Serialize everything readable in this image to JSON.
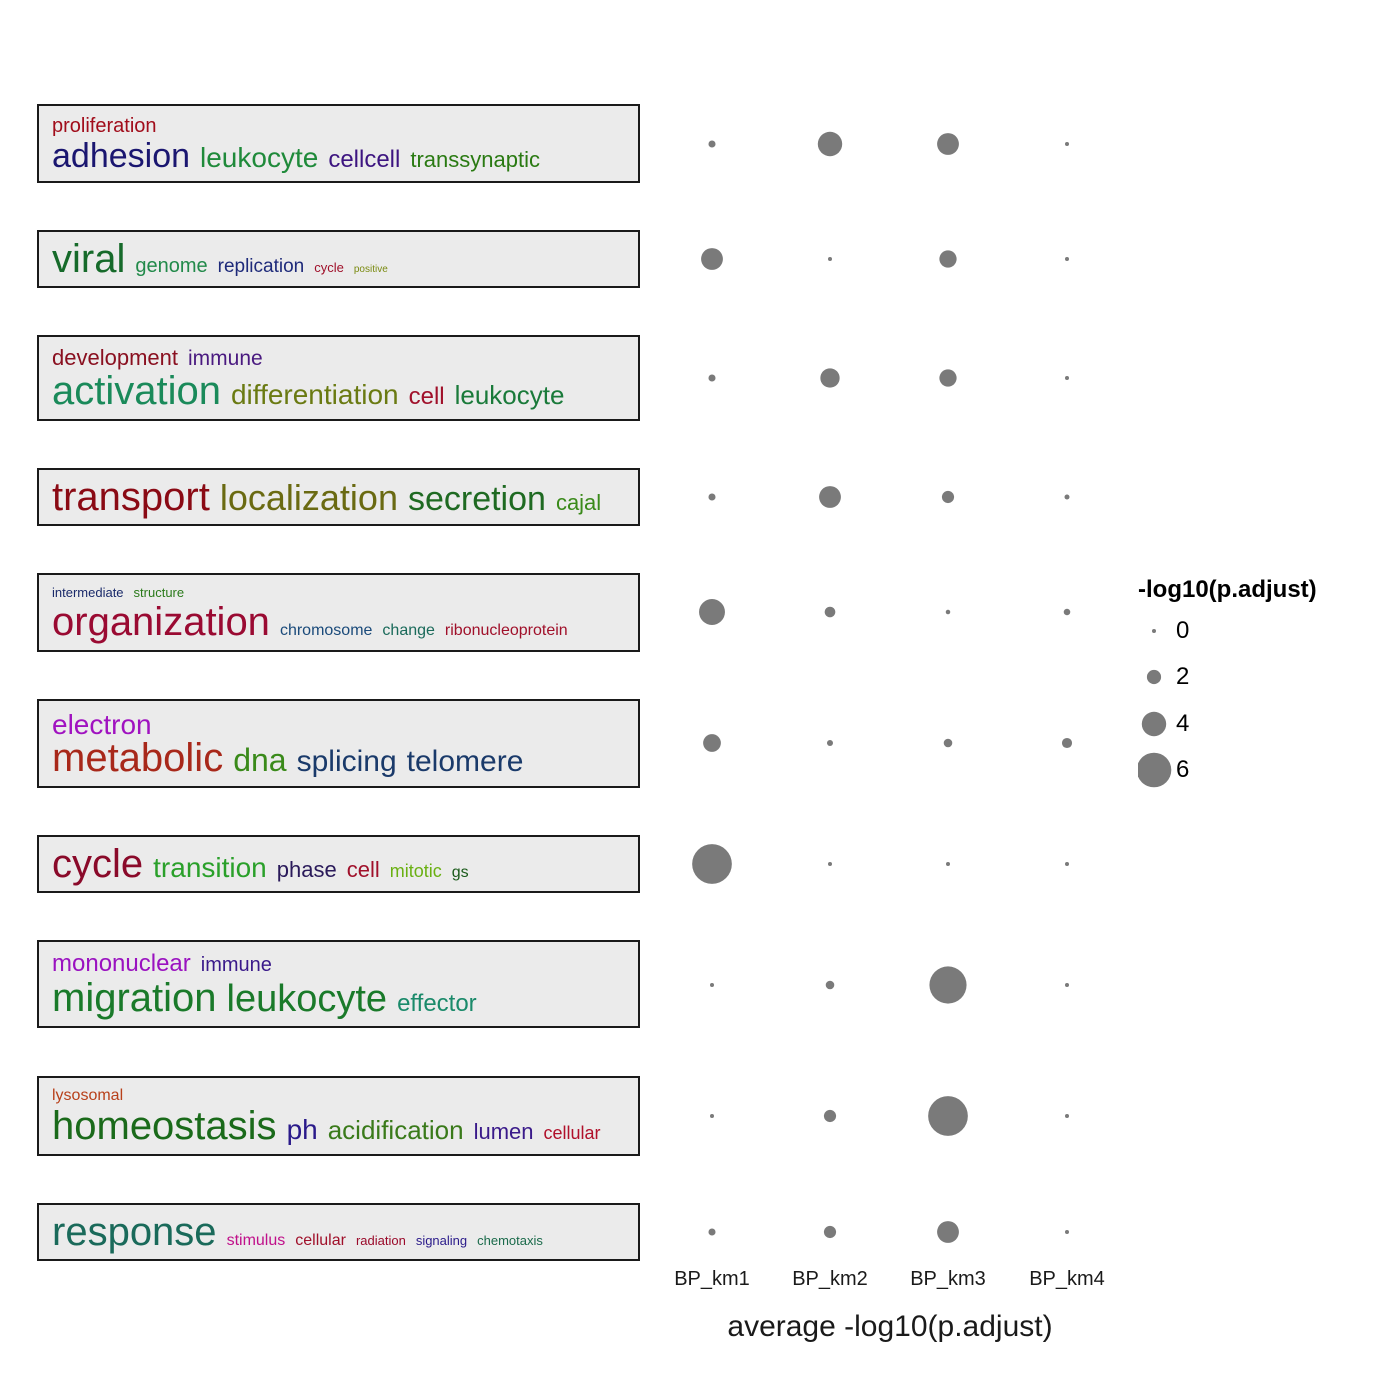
{
  "chart_data": {
    "type": "scatter",
    "xlabel": "average -log10(p.adjust)",
    "categories": [
      "BP_km1",
      "BP_km2",
      "BP_km3",
      "BP_km4"
    ],
    "point_color": "#7a7a7a",
    "legend": {
      "title": "-log10(p.adjust)",
      "placement": "right",
      "labels": [
        "0",
        "2",
        "4",
        "6"
      ],
      "values": [
        0,
        2,
        4,
        6
      ]
    },
    "rows": [
      {
        "lines": [
          [
            {
              "text": "proliferation",
              "color": "#a10d1b"
            }
          ],
          [
            {
              "text": "adhesion",
              "color": "#1a1670"
            },
            {
              "text": "leukocyte",
              "color": "#1f8a3a"
            },
            {
              "text": "cellcell",
              "color": "#3d1580"
            },
            {
              "text": "transsynaptic",
              "color": "#2a7a12"
            }
          ]
        ],
        "values": [
          0.6,
          4.0,
          3.5,
          0.0
        ]
      },
      {
        "lines": [
          [
            {
              "text": "viral",
              "color": "#166a2a"
            },
            {
              "text": "genome",
              "color": "#228a4a"
            },
            {
              "text": "replication",
              "color": "#1e2a7a"
            },
            {
              "text": "cycle",
              "color": "#a0102a"
            },
            {
              "text": "positive",
              "color": "#7a8a10"
            }
          ]
        ],
        "values": [
          3.5,
          0.0,
          2.6,
          0.0
        ]
      },
      {
        "lines": [
          [
            {
              "text": "development",
              "color": "#8a1020"
            },
            {
              "text": "immune",
              "color": "#4a1a80"
            }
          ],
          [
            {
              "text": "activation",
              "color": "#1a8a5a"
            },
            {
              "text": "differentiation",
              "color": "#6a7a12"
            },
            {
              "text": "cell",
              "color": "#a0102a"
            },
            {
              "text": "leukocyte",
              "color": "#1a7a3a"
            }
          ]
        ],
        "values": [
          0.6,
          3.0,
          2.6,
          0.0
        ]
      },
      {
        "lines": [
          [
            {
              "text": "transport",
              "color": "#8a0a14"
            },
            {
              "text": "localization",
              "color": "#6a6a12"
            },
            {
              "text": "secretion",
              "color": "#1f6a22"
            },
            {
              "text": "cajal",
              "color": "#3a8a1a"
            }
          ]
        ],
        "values": [
          0.6,
          3.5,
          1.6,
          0.2
        ]
      },
      {
        "lines": [
          [
            {
              "text": "intermediate",
              "color": "#1a2a6a"
            },
            {
              "text": "structure",
              "color": "#2a7a1a"
            }
          ],
          [
            {
              "text": "organization",
              "color": "#9a0a32"
            },
            {
              "text": "chromosome",
              "color": "#1a4a7a"
            },
            {
              "text": "change",
              "color": "#1a6a5a"
            },
            {
              "text": "ribonucleoprotein",
              "color": "#a0102a"
            }
          ]
        ],
        "values": [
          4.3,
          1.3,
          0.1,
          0.5
        ]
      },
      {
        "lines": [
          [
            {
              "text": "electron",
              "color": "#a012c0"
            }
          ],
          [
            {
              "text": "metabolic",
              "color": "#a8281a"
            },
            {
              "text": "dna",
              "color": "#3a8a1a"
            },
            {
              "text": "splicing",
              "color": "#1a3a6a"
            },
            {
              "text": "telomere",
              "color": "#1a3a6a"
            }
          ]
        ],
        "values": [
          2.7,
          0.4,
          0.9,
          1.2
        ]
      },
      {
        "lines": [
          [
            {
              "text": "cycle",
              "color": "#8a0a2a"
            },
            {
              "text": "transition",
              "color": "#2aa02a"
            },
            {
              "text": "phase",
              "color": "#2a1a5a"
            },
            {
              "text": "cell",
              "color": "#a0102a"
            },
            {
              "text": "mitotic",
              "color": "#6ab012"
            },
            {
              "text": "gs",
              "color": "#1a5a1a"
            }
          ]
        ],
        "values": [
          7.0,
          0.0,
          0.0,
          0.0
        ]
      },
      {
        "lines": [
          [
            {
              "text": "mononuclear",
              "color": "#9a12c0"
            },
            {
              "text": "immune",
              "color": "#3a1a8a"
            }
          ],
          [
            {
              "text": "migration",
              "color": "#1a7a2a"
            },
            {
              "text": "leukocyte",
              "color": "#1a7a2a"
            },
            {
              "text": "effector",
              "color": "#1a8a6a"
            }
          ]
        ],
        "values": [
          0.0,
          0.9,
          6.5,
          0.0
        ]
      },
      {
        "lines": [
          [
            {
              "text": "lysosomal",
              "color": "#b8401a"
            }
          ],
          [
            {
              "text": "homeostasis",
              "color": "#1a6a1a"
            },
            {
              "text": "ph",
              "color": "#2a1a8a"
            },
            {
              "text": "acidification",
              "color": "#3a7a1a"
            },
            {
              "text": "lumen",
              "color": "#3a1a8a"
            },
            {
              "text": "cellular",
              "color": "#b0102a"
            }
          ]
        ],
        "values": [
          0.0,
          1.6,
          7.0,
          0.0
        ]
      },
      {
        "lines": [
          [
            {
              "text": "response",
              "color": "#1a6a5a"
            },
            {
              "text": "stimulus",
              "color": "#c0108a"
            },
            {
              "text": "cellular",
              "color": "#a0102a"
            },
            {
              "text": "radiation",
              "color": "#9a0a2a"
            },
            {
              "text": "signaling",
              "color": "#2a1a8a"
            },
            {
              "text": "chemotaxis",
              "color": "#1a6a4a"
            }
          ]
        ],
        "values": [
          0.6,
          1.6,
          3.5,
          0.0
        ]
      }
    ]
  }
}
